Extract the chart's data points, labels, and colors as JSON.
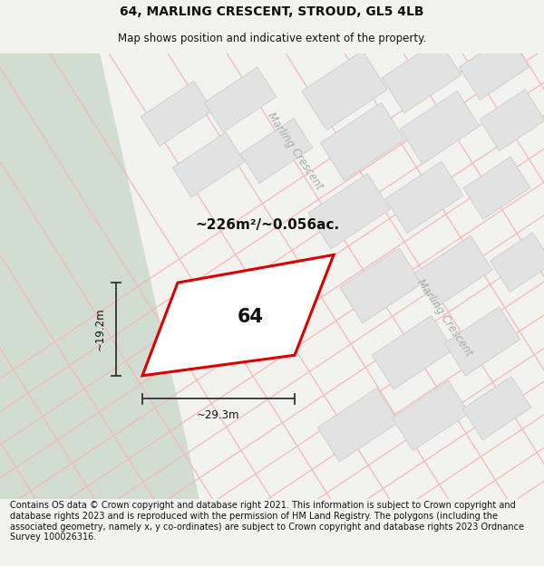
{
  "title": "64, MARLING CRESCENT, STROUD, GL5 4LB",
  "subtitle": "Map shows position and indicative extent of the property.",
  "footer": "Contains OS data © Crown copyright and database right 2021. This information is subject to Crown copyright and database rights 2023 and is reproduced with the permission of HM Land Registry. The polygons (including the associated geometry, namely x, y co-ordinates) are subject to Crown copyright and database rights 2023 Ordnance Survey 100026316.",
  "area_label": "~226m²/~0.056ac.",
  "width_label": "~29.3m",
  "height_label": "~19.2m",
  "number_label": "64",
  "bg_color": "#f2f2ee",
  "map_bg": "#ffffff",
  "green_area_color": "#d0ddd0",
  "plot_outline_color": "#dd0000",
  "building_color": "#e2e2e2",
  "building_edge_color": "#cccccc",
  "dim_line_color": "#333333",
  "road_label_color": "#aaaaaa",
  "road_line_color": "#f4b8b8",
  "title_fontsize": 10,
  "subtitle_fontsize": 8.5,
  "footer_fontsize": 7.0,
  "road_label_fontsize": 8.5
}
